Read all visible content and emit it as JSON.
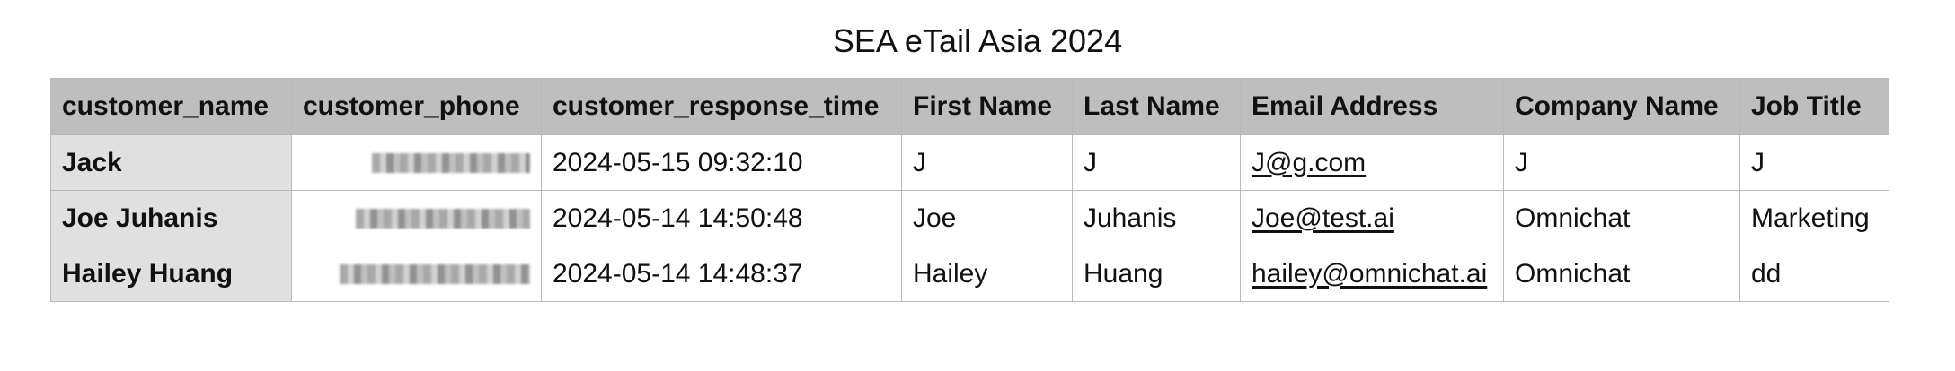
{
  "sheet": {
    "title": "SEA eTail Asia 2024"
  },
  "table": {
    "columns": [
      "customer_name",
      "customer_phone",
      "customer_response_time",
      "First Name",
      "Last Name",
      "Email Address",
      "Company Name",
      "Job Title"
    ],
    "rows": [
      {
        "customer_name": "Jack",
        "customer_response_time": "2024-05-15 09:32:10",
        "first_name": "J",
        "last_name": "J",
        "email": "J@g.com",
        "company": "J",
        "job_title": "J"
      },
      {
        "customer_name": "Joe Juhanis",
        "customer_response_time": "2024-05-14 14:50:48",
        "first_name": "Joe",
        "last_name": "Juhanis",
        "email": "Joe@test.ai",
        "company": "Omnichat",
        "job_title": "Marketing"
      },
      {
        "customer_name": "Hailey Huang",
        "customer_response_time": "2024-05-14 14:48:37",
        "first_name": "Hailey",
        "last_name": "Huang",
        "email": "hailey@omnichat.ai",
        "company": "Omnichat",
        "job_title": "dd"
      }
    ]
  }
}
